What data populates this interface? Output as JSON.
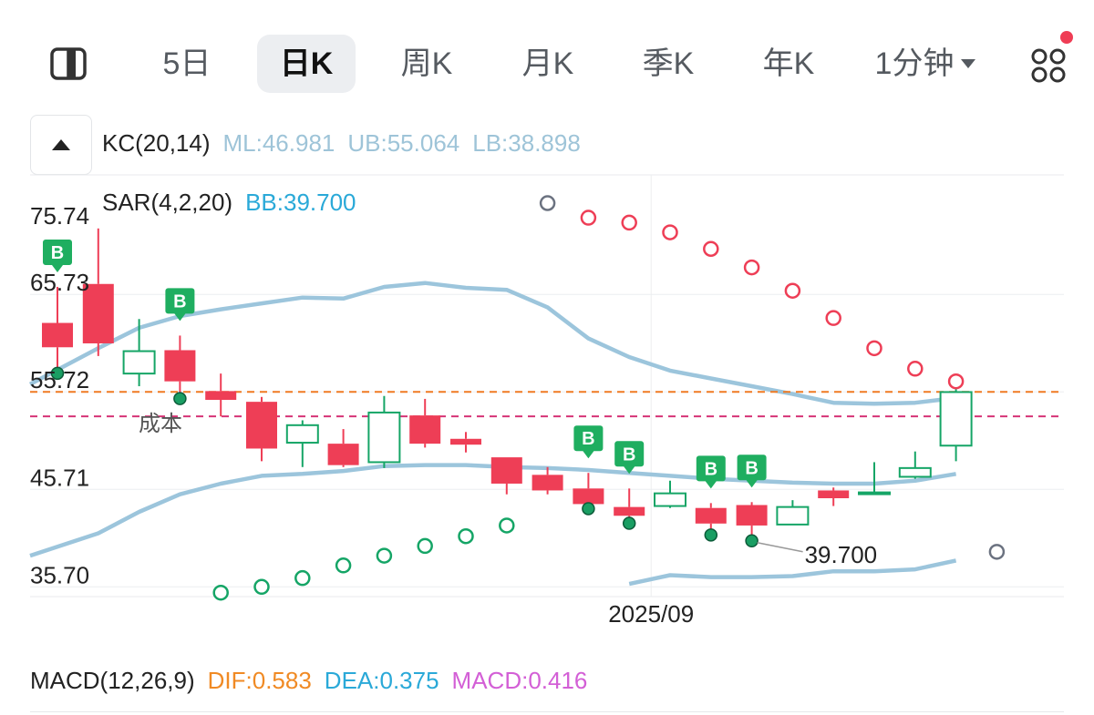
{
  "tabs": [
    {
      "label": "5日",
      "active": false
    },
    {
      "label": "日K",
      "active": true
    },
    {
      "label": "周K",
      "active": false
    },
    {
      "label": "月K",
      "active": false
    },
    {
      "label": "季K",
      "active": false
    },
    {
      "label": "年K",
      "active": false
    },
    {
      "label": "1分钟",
      "active": false,
      "dropdown": true
    }
  ],
  "icons": {
    "left": "split-panel-icon",
    "right": "grid-apps-icon",
    "badge": "notification-dot-icon",
    "toggle": "collapse-triangle-icon"
  },
  "indicators": {
    "kc": {
      "name": "KC(20,14)",
      "ml": "ML:46.981",
      "ub": "UB:55.064",
      "lb": "LB:38.898"
    },
    "sar": {
      "name": "SAR(4,2,20)",
      "bb": "BB:39.700"
    },
    "macd": {
      "name": "MACD(12,26,9)",
      "dif": "DIF:0.583",
      "dea": "DEA:0.375",
      "macd": "MACD:0.416"
    }
  },
  "colors": {
    "up": "#ee3e56",
    "down": "#15a566",
    "kc_line": "#9cc5dc",
    "sar_red": "#ee3e56",
    "sar_green": "#15a566",
    "sar_gray": "#6b7280",
    "orange_line": "#f07a22",
    "pink_line": "#d63376",
    "dif": "#f08a24",
    "dea": "#2aa9d8",
    "macd": "#d35fd6",
    "label_gray": "#9ec4d8",
    "bb": "#2aa9d8"
  },
  "chart_data": {
    "type": "candlestick",
    "y_axis_labels": [
      "75.74",
      "65.73",
      "55.72",
      "45.71",
      "35.70"
    ],
    "y_ticks": [
      75.74,
      65.73,
      55.72,
      45.71,
      35.7
    ],
    "x_label": "2025/09",
    "x_label_index": 14,
    "cost_label": "成本",
    "cost_price": 53.2,
    "current_price": 55.72,
    "sar_min_label": "39.700",
    "sar_min_index": 17,
    "candles": [
      {
        "o": 62.8,
        "h": 66.5,
        "l": 58.0,
        "c": 60.3
      },
      {
        "o": 66.8,
        "h": 72.5,
        "l": 59.4,
        "c": 60.7
      },
      {
        "o": 57.6,
        "h": 63.2,
        "l": 56.3,
        "c": 59.9
      },
      {
        "o": 60.0,
        "h": 61.5,
        "l": 55.4,
        "c": 56.8
      },
      {
        "o": 55.8,
        "h": 57.6,
        "l": 53.2,
        "c": 54.9
      },
      {
        "o": 54.7,
        "h": 55.2,
        "l": 48.6,
        "c": 49.9
      },
      {
        "o": 50.5,
        "h": 52.8,
        "l": 48.0,
        "c": 52.3
      },
      {
        "o": 50.4,
        "h": 51.9,
        "l": 48.0,
        "c": 48.2
      },
      {
        "o": 48.5,
        "h": 55.3,
        "l": 47.9,
        "c": 53.6
      },
      {
        "o": 53.3,
        "h": 55.0,
        "l": 50.0,
        "c": 50.4
      },
      {
        "o": 50.9,
        "h": 51.6,
        "l": 49.5,
        "c": 50.3
      },
      {
        "o": 49.0,
        "h": 49.0,
        "l": 45.2,
        "c": 46.3
      },
      {
        "o": 47.2,
        "h": 48.0,
        "l": 45.2,
        "c": 45.6
      },
      {
        "o": 45.8,
        "h": 47.4,
        "l": 44.1,
        "c": 44.2
      },
      {
        "o": 43.9,
        "h": 45.8,
        "l": 42.6,
        "c": 43.0
      },
      {
        "o": 44.0,
        "h": 46.6,
        "l": 43.8,
        "c": 45.3
      },
      {
        "o": 43.8,
        "h": 44.3,
        "l": 41.4,
        "c": 42.2
      },
      {
        "o": 44.1,
        "h": 44.4,
        "l": 40.8,
        "c": 42.0
      },
      {
        "o": 42.1,
        "h": 44.6,
        "l": 42.1,
        "c": 43.9
      },
      {
        "o": 45.6,
        "h": 45.9,
        "l": 44.0,
        "c": 44.8
      },
      {
        "o": 45.4,
        "h": 48.5,
        "l": 45.2,
        "c": 45.4
      },
      {
        "o": 47.0,
        "h": 49.6,
        "l": 46.8,
        "c": 47.9
      },
      {
        "o": 50.2,
        "h": 56.0,
        "l": 48.6,
        "c": 55.7
      }
    ],
    "buy_markers": [
      0,
      3,
      13,
      14,
      16,
      17
    ],
    "kc_upper": [
      56.5,
      60.2,
      62.3,
      63.5,
      64.2,
      64.8,
      65.4,
      65.3,
      66.5,
      66.9,
      66.4,
      66.2,
      64.4,
      61.2,
      59.3,
      57.9,
      57.1,
      56.3,
      55.5,
      54.6,
      54.5,
      54.6,
      55.1
    ],
    "kc_middle": [
      null,
      null,
      null,
      45.2,
      46.3,
      47.1,
      47.3,
      47.6,
      48.1,
      48.2,
      48.2,
      48.0,
      47.9,
      47.7,
      47.4,
      47.1,
      46.8,
      46.6,
      46.4,
      46.3,
      46.3,
      46.6,
      47.3
    ],
    "kc_lower": [
      null,
      null,
      null,
      null,
      null,
      null,
      null,
      null,
      null,
      null,
      null,
      null,
      null,
      null,
      36.0,
      36.9,
      36.7,
      36.7,
      36.8,
      37.3,
      37.3,
      37.5,
      38.4
    ],
    "sar": [
      {
        "i": 12,
        "v": 75.1,
        "side": "gray"
      },
      {
        "i": 13,
        "v": 73.6,
        "side": "red"
      },
      {
        "i": 14,
        "v": 73.1,
        "side": "red"
      },
      {
        "i": 15,
        "v": 72.1,
        "side": "red"
      },
      {
        "i": 16,
        "v": 70.4,
        "side": "red"
      },
      {
        "i": 17,
        "v": 68.5,
        "side": "red"
      },
      {
        "i": 18,
        "v": 66.1,
        "side": "red"
      },
      {
        "i": 19,
        "v": 63.3,
        "side": "red"
      },
      {
        "i": 20,
        "v": 60.2,
        "side": "red"
      },
      {
        "i": 21,
        "v": 58.1,
        "side": "red"
      },
      {
        "i": 22,
        "v": 56.8,
        "side": "red"
      },
      {
        "i": 4,
        "v": 35.1,
        "side": "green"
      },
      {
        "i": 5,
        "v": 35.7,
        "side": "green"
      },
      {
        "i": 6,
        "v": 36.6,
        "side": "green"
      },
      {
        "i": 7,
        "v": 37.9,
        "side": "green"
      },
      {
        "i": 8,
        "v": 38.9,
        "side": "green"
      },
      {
        "i": 9,
        "v": 39.9,
        "side": "green"
      },
      {
        "i": 10,
        "v": 40.9,
        "side": "green"
      },
      {
        "i": 11,
        "v": 42.0,
        "side": "green"
      },
      {
        "i": 23,
        "v": 39.3,
        "side": "gray"
      }
    ]
  }
}
